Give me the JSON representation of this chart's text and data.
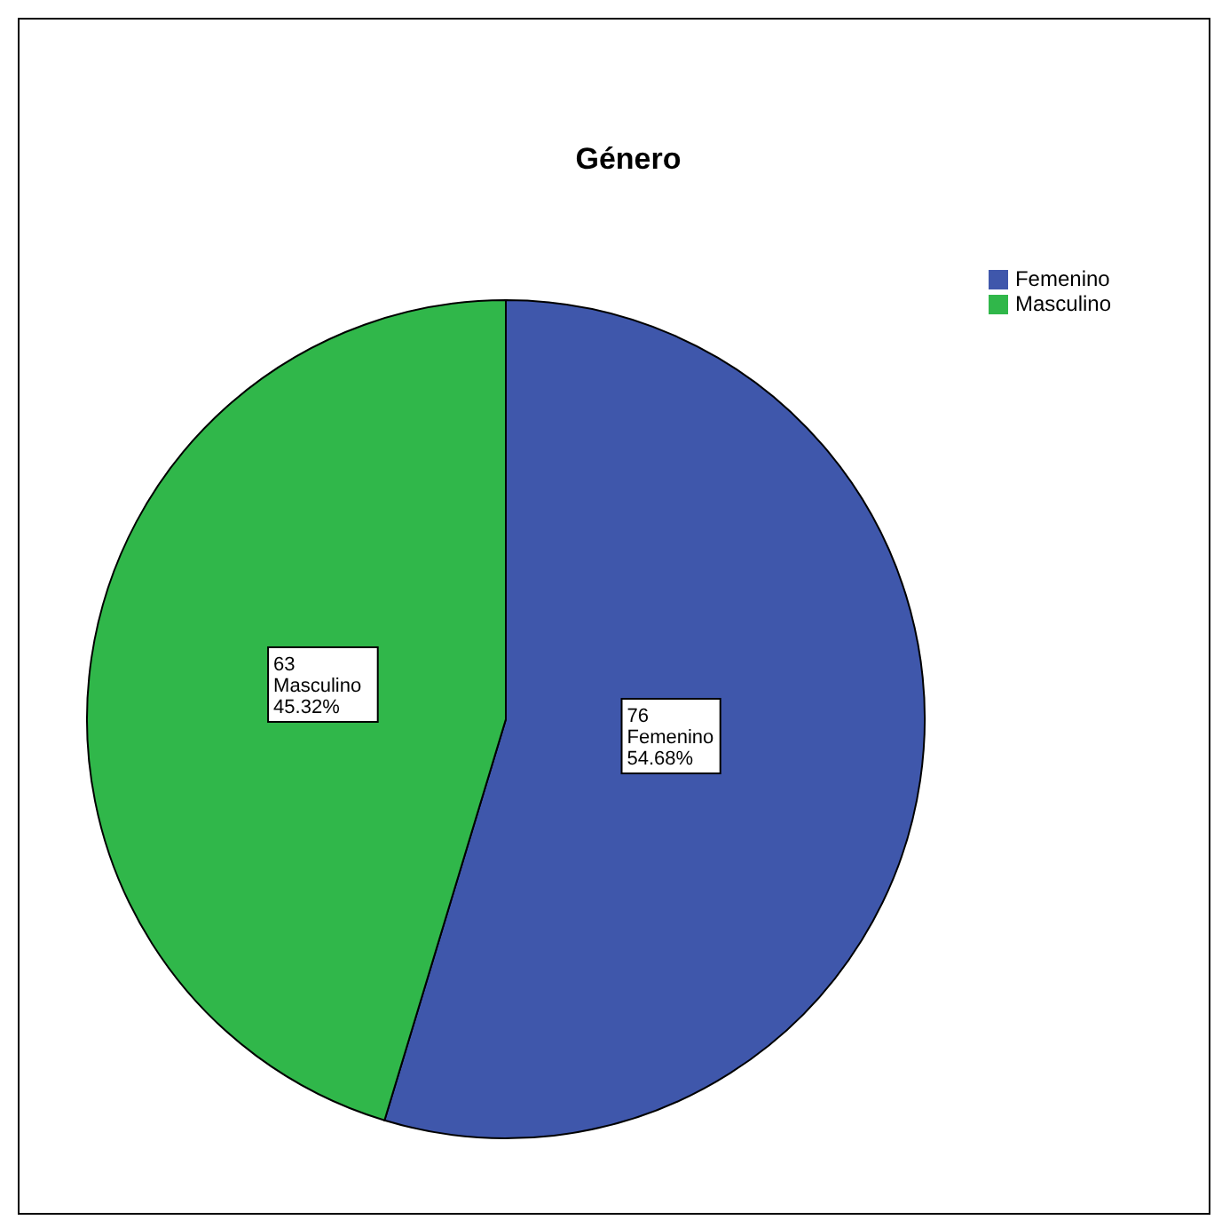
{
  "chart_data": {
    "type": "pie",
    "title": "Género",
    "categories": [
      "Femenino",
      "Masculino"
    ],
    "values": [
      76,
      63
    ],
    "colors": [
      "#3f57ab",
      "#30b74a"
    ],
    "value_labels": [
      "76\nFemenino\n54.68%",
      "63\nMasculino\n45.32%"
    ],
    "legend": "top right"
  }
}
